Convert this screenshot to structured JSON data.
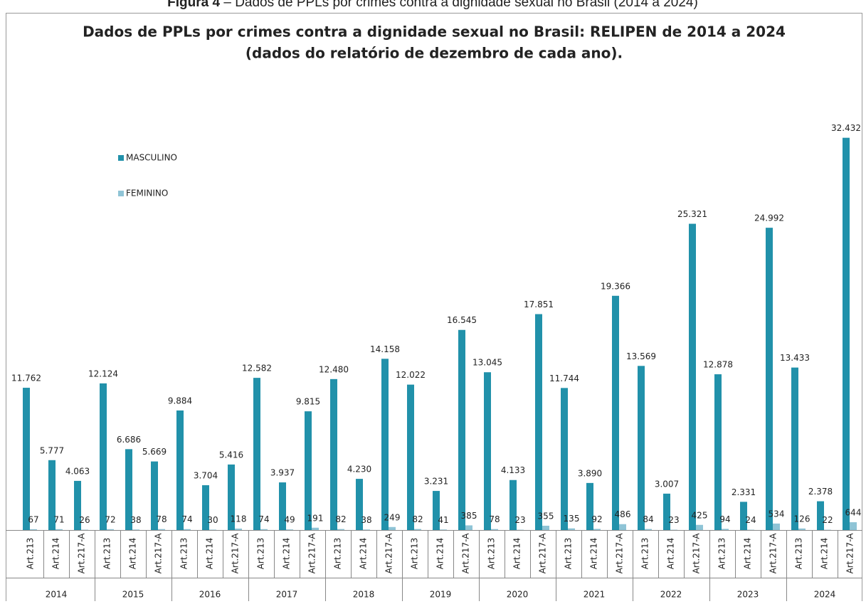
{
  "caption": {
    "label": "Figura 4",
    "text": "– Dados de PPLs por crimes contra a dignidade sexual no Brasil (2014 a 2024)"
  },
  "chart_data": {
    "type": "bar",
    "title": "Dados de PPLs por crimes contra a dignidade sexual no Brasil: RELIPEN de 2014 a 2024",
    "subtitle": "(dados do relatório de dezembro de cada ano).",
    "groups": [
      "2014",
      "2015",
      "2016",
      "2017",
      "2018",
      "2019",
      "2020",
      "2021",
      "2022",
      "2023",
      "2024"
    ],
    "categories": [
      "Art.213",
      "Art.214",
      "Art.217-A",
      "Art.213",
      "Art.214",
      "Art.217-A",
      "Art.213",
      "Art.214",
      "Art.217-A",
      "Art.213",
      "Art.214",
      "Art.217-A",
      "Art.213",
      "Art.214",
      "Art.217-A",
      "Art.213",
      "Art.214",
      "Art.217-A",
      "Art.213",
      "Art.214",
      "Art.217-A",
      "Art.213",
      "Art.214",
      "Art.217-A",
      "Art.213",
      "Art.214",
      "Art.217-A",
      "Art.213",
      "Art.214",
      "Art.217-A",
      "Art.213",
      "Art.214",
      "Art.217-A"
    ],
    "series": [
      {
        "name": "MASCULINO",
        "color": "#2191aa",
        "values": [
          11762,
          5777,
          4063,
          12124,
          6686,
          5669,
          9884,
          3704,
          5416,
          12582,
          3937,
          9815,
          12480,
          4230,
          14158,
          12022,
          3231,
          16545,
          13045,
          4133,
          17851,
          11744,
          3890,
          19366,
          13569,
          3007,
          25321,
          12878,
          2331,
          24992,
          13433,
          2378,
          32432
        ],
        "value_labels": [
          "11.762",
          "5.777",
          "4.063",
          "12.124",
          "6.686",
          "5.669",
          "9.884",
          "3.704",
          "5.416",
          "12.582",
          "3.937",
          "9.815",
          "12.480",
          "4.230",
          "14.158",
          "12.022",
          "3.231",
          "16.545",
          "13.045",
          "4.133",
          "17.851",
          "11.744",
          "3.890",
          "19.366",
          "13.569",
          "3.007",
          "25.321",
          "12.878",
          "2.331",
          "24.992",
          "13.433",
          "2.378",
          "32.432"
        ]
      },
      {
        "name": "FEMININO",
        "color": "#8fc4d6",
        "values": [
          67,
          71,
          26,
          72,
          38,
          78,
          74,
          30,
          118,
          74,
          49,
          191,
          82,
          38,
          249,
          82,
          41,
          385,
          78,
          23,
          355,
          135,
          92,
          486,
          84,
          23,
          425,
          94,
          24,
          534,
          126,
          22,
          644
        ]
      }
    ],
    "ylim": [
      0,
      35000
    ],
    "legend": "upper left"
  }
}
